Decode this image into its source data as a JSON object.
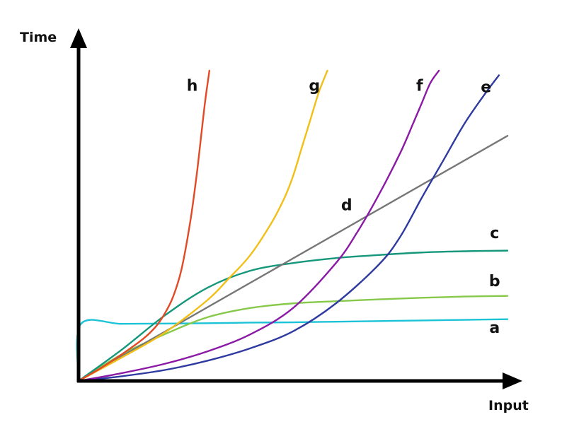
{
  "chart_data": {
    "type": "line",
    "xlabel": "Input",
    "ylabel": "Time",
    "xlim": [
      0,
      100
    ],
    "ylim": [
      0,
      100
    ],
    "grid": false,
    "legend": "none",
    "series": [
      {
        "name": "a",
        "color": "#1cc3d6",
        "x": [
          0,
          0.5,
          10,
          20,
          30,
          40,
          50,
          60,
          70,
          80,
          90,
          100
        ],
        "y": [
          0,
          18.3,
          18.4,
          18.5,
          18.6,
          18.8,
          18.9,
          19.1,
          19.3,
          19.5,
          19.7,
          19.9
        ]
      },
      {
        "name": "b",
        "color": "#86c94a",
        "x": [
          0,
          10,
          20,
          30,
          40,
          50,
          60,
          70,
          80,
          90,
          100
        ],
        "y": [
          0,
          8.5,
          15,
          20.5,
          23.5,
          25,
          25.7,
          26.3,
          26.8,
          27.2,
          27.4
        ]
      },
      {
        "name": "c",
        "color": "#14977a",
        "x": [
          0,
          10,
          20,
          30,
          40,
          50,
          60,
          70,
          80,
          90,
          100
        ],
        "y": [
          0,
          10,
          21,
          30,
          35.5,
          38,
          39.6,
          40.6,
          41.4,
          41.8,
          42
        ]
      },
      {
        "name": "d",
        "color": "#777777",
        "x": [
          0,
          100
        ],
        "y": [
          0,
          79
        ]
      },
      {
        "name": "e",
        "color": "#2e3aa0",
        "x": [
          0,
          10,
          20,
          30,
          40,
          50,
          60,
          70,
          75,
          80,
          85,
          90,
          95,
          98
        ],
        "y": [
          0,
          1.5,
          3.5,
          6.5,
          10.5,
          16,
          25,
          37.5,
          46.5,
          59,
          71,
          83,
          93,
          98.5
        ]
      },
      {
        "name": "f",
        "color": "#8a1aa5",
        "x": [
          0,
          10,
          20,
          30,
          40,
          50,
          60,
          65,
          70,
          75,
          78,
          80,
          82,
          84
        ],
        "y": [
          0,
          2.5,
          5.5,
          9.5,
          15,
          23.5,
          38,
          48,
          60,
          73.5,
          83,
          89.5,
          96,
          100
        ]
      },
      {
        "name": "g",
        "color": "#f2bf17",
        "x": [
          0,
          10,
          20,
          30,
          35,
          40,
          45,
          48,
          50,
          52,
          54,
          56,
          58
        ],
        "y": [
          0,
          7.5,
          15.5,
          26,
          33,
          40.5,
          51,
          59,
          66,
          75,
          84,
          93,
          100
        ]
      },
      {
        "name": "h",
        "color": "#e24a25",
        "x": [
          0,
          5,
          10,
          15,
          18,
          20,
          22,
          24,
          26,
          27.5,
          28.5,
          29.5,
          30.5
        ],
        "y": [
          0,
          4,
          8.5,
          13.5,
          17.5,
          21.5,
          27,
          36,
          51,
          66,
          78,
          90,
          100
        ]
      }
    ],
    "series_labels": [
      {
        "name": "h",
        "x": 26.5,
        "y": 93.5
      },
      {
        "name": "g",
        "x": 55,
        "y": 93.5
      },
      {
        "name": "f",
        "x": 79.5,
        "y": 93.5
      },
      {
        "name": "e",
        "x": 95,
        "y": 93
      },
      {
        "name": "d",
        "x": 62.5,
        "y": 55
      },
      {
        "name": "c",
        "x": 97,
        "y": 46
      },
      {
        "name": "b",
        "x": 97,
        "y": 30.5
      },
      {
        "name": "a",
        "x": 97,
        "y": 15.5
      }
    ]
  }
}
